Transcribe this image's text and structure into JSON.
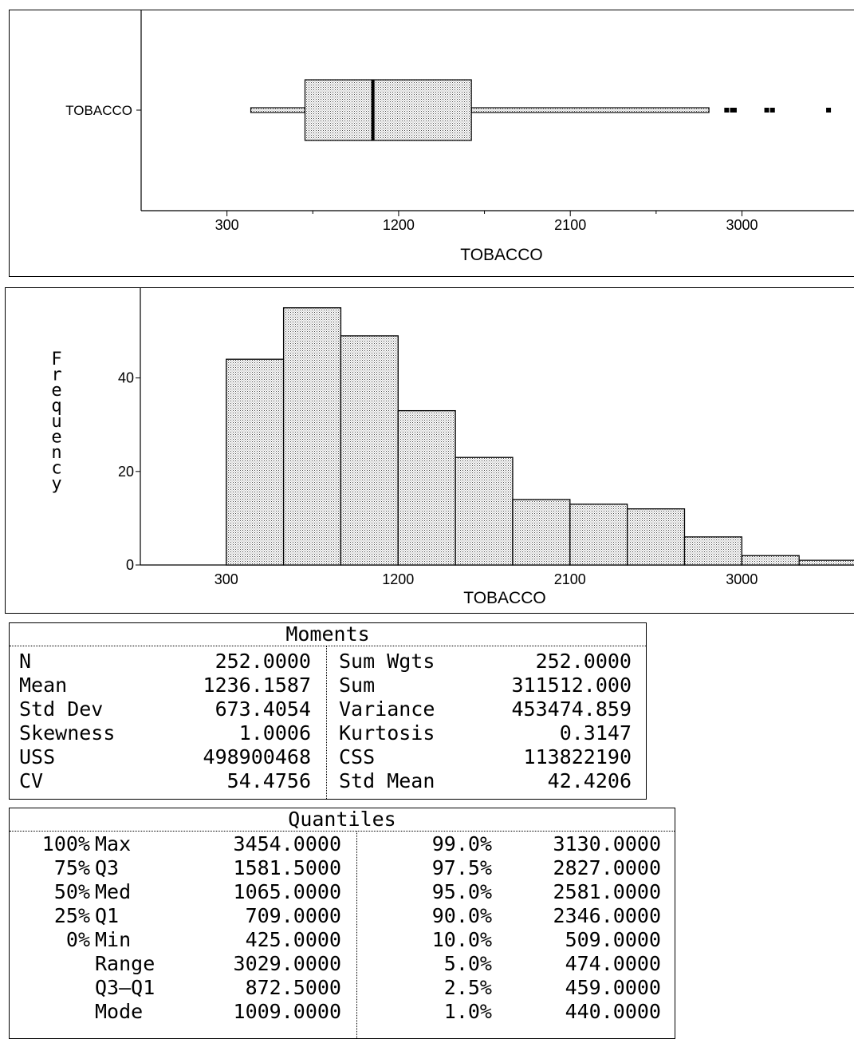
{
  "box_plot": {
    "category_label": "TOBACCO",
    "xlabel": "TOBACCO",
    "xticks": [
      300,
      1200,
      2100,
      3000
    ],
    "xlim": [
      -150,
      3600
    ]
  },
  "histogram": {
    "ylabel": "Frequency",
    "xlabel": "TOBACCO",
    "xticks": [
      300,
      1200,
      2100,
      3000
    ],
    "yticks": [
      0,
      20,
      40
    ],
    "xlim": [
      -150,
      3600
    ],
    "ylim": [
      0,
      57
    ]
  },
  "chart_data": [
    {
      "type": "boxplot",
      "category": "TOBACCO",
      "whisker_low": 425,
      "q1": 709,
      "median": 1065,
      "q3": 1581.5,
      "whisker_high": 2827,
      "outliers": [
        2920,
        2950,
        2960,
        3130,
        3160,
        3454
      ],
      "xlabel": "TOBACCO",
      "xlim": [
        -150,
        3600
      ]
    },
    {
      "type": "bar",
      "bin_edges": [
        300,
        600,
        900,
        1200,
        1500,
        1800,
        2100,
        2400,
        2700,
        3000,
        3300,
        3600
      ],
      "values": [
        44,
        55,
        49,
        33,
        23,
        14,
        13,
        12,
        6,
        2,
        1
      ],
      "xlabel": "TOBACCO",
      "ylabel": "Frequency",
      "ylim": [
        0,
        57
      ]
    }
  ],
  "moments": {
    "title": "Moments",
    "rows": [
      {
        "l1": "N",
        "v1": "252.0000",
        "l2": "Sum Wgts",
        "v2": "252.0000"
      },
      {
        "l1": "Mean",
        "v1": "1236.1587",
        "l2": "Sum",
        "v2": "311512.000"
      },
      {
        "l1": "Std Dev",
        "v1": "673.4054",
        "l2": "Variance",
        "v2": "453474.859"
      },
      {
        "l1": "Skewness",
        "v1": "1.0006",
        "l2": "Kurtosis",
        "v2": "0.3147"
      },
      {
        "l1": "USS",
        "v1": "498900468",
        "l2": "CSS",
        "v2": "113822190"
      },
      {
        "l1": "CV",
        "v1": "54.4756",
        "l2": "Std Mean",
        "v2": "42.4206"
      }
    ]
  },
  "quantiles": {
    "title": "Quantiles",
    "rows": [
      {
        "p": "100%",
        "l": "Max",
        "v": "3454.0000",
        "p2": "99.0%",
        "v2": "3130.0000"
      },
      {
        "p": "75%",
        "l": "Q3",
        "v": "1581.5000",
        "p2": "97.5%",
        "v2": "2827.0000"
      },
      {
        "p": "50%",
        "l": "Med",
        "v": "1065.0000",
        "p2": "95.0%",
        "v2": "2581.0000"
      },
      {
        "p": "25%",
        "l": "Q1",
        "v": "709.0000",
        "p2": "90.0%",
        "v2": "2346.0000"
      },
      {
        "p": "0%",
        "l": "Min",
        "v": "425.0000",
        "p2": "10.0%",
        "v2": "509.0000"
      },
      {
        "p": "",
        "l": "Range",
        "v": "3029.0000",
        "p2": "5.0%",
        "v2": "474.0000"
      },
      {
        "p": "",
        "l": "Q3–Q1",
        "v": "872.5000",
        "p2": "2.5%",
        "v2": "459.0000"
      },
      {
        "p": "",
        "l": "Mode",
        "v": "1009.0000",
        "p2": "1.0%",
        "v2": "440.0000"
      }
    ]
  }
}
